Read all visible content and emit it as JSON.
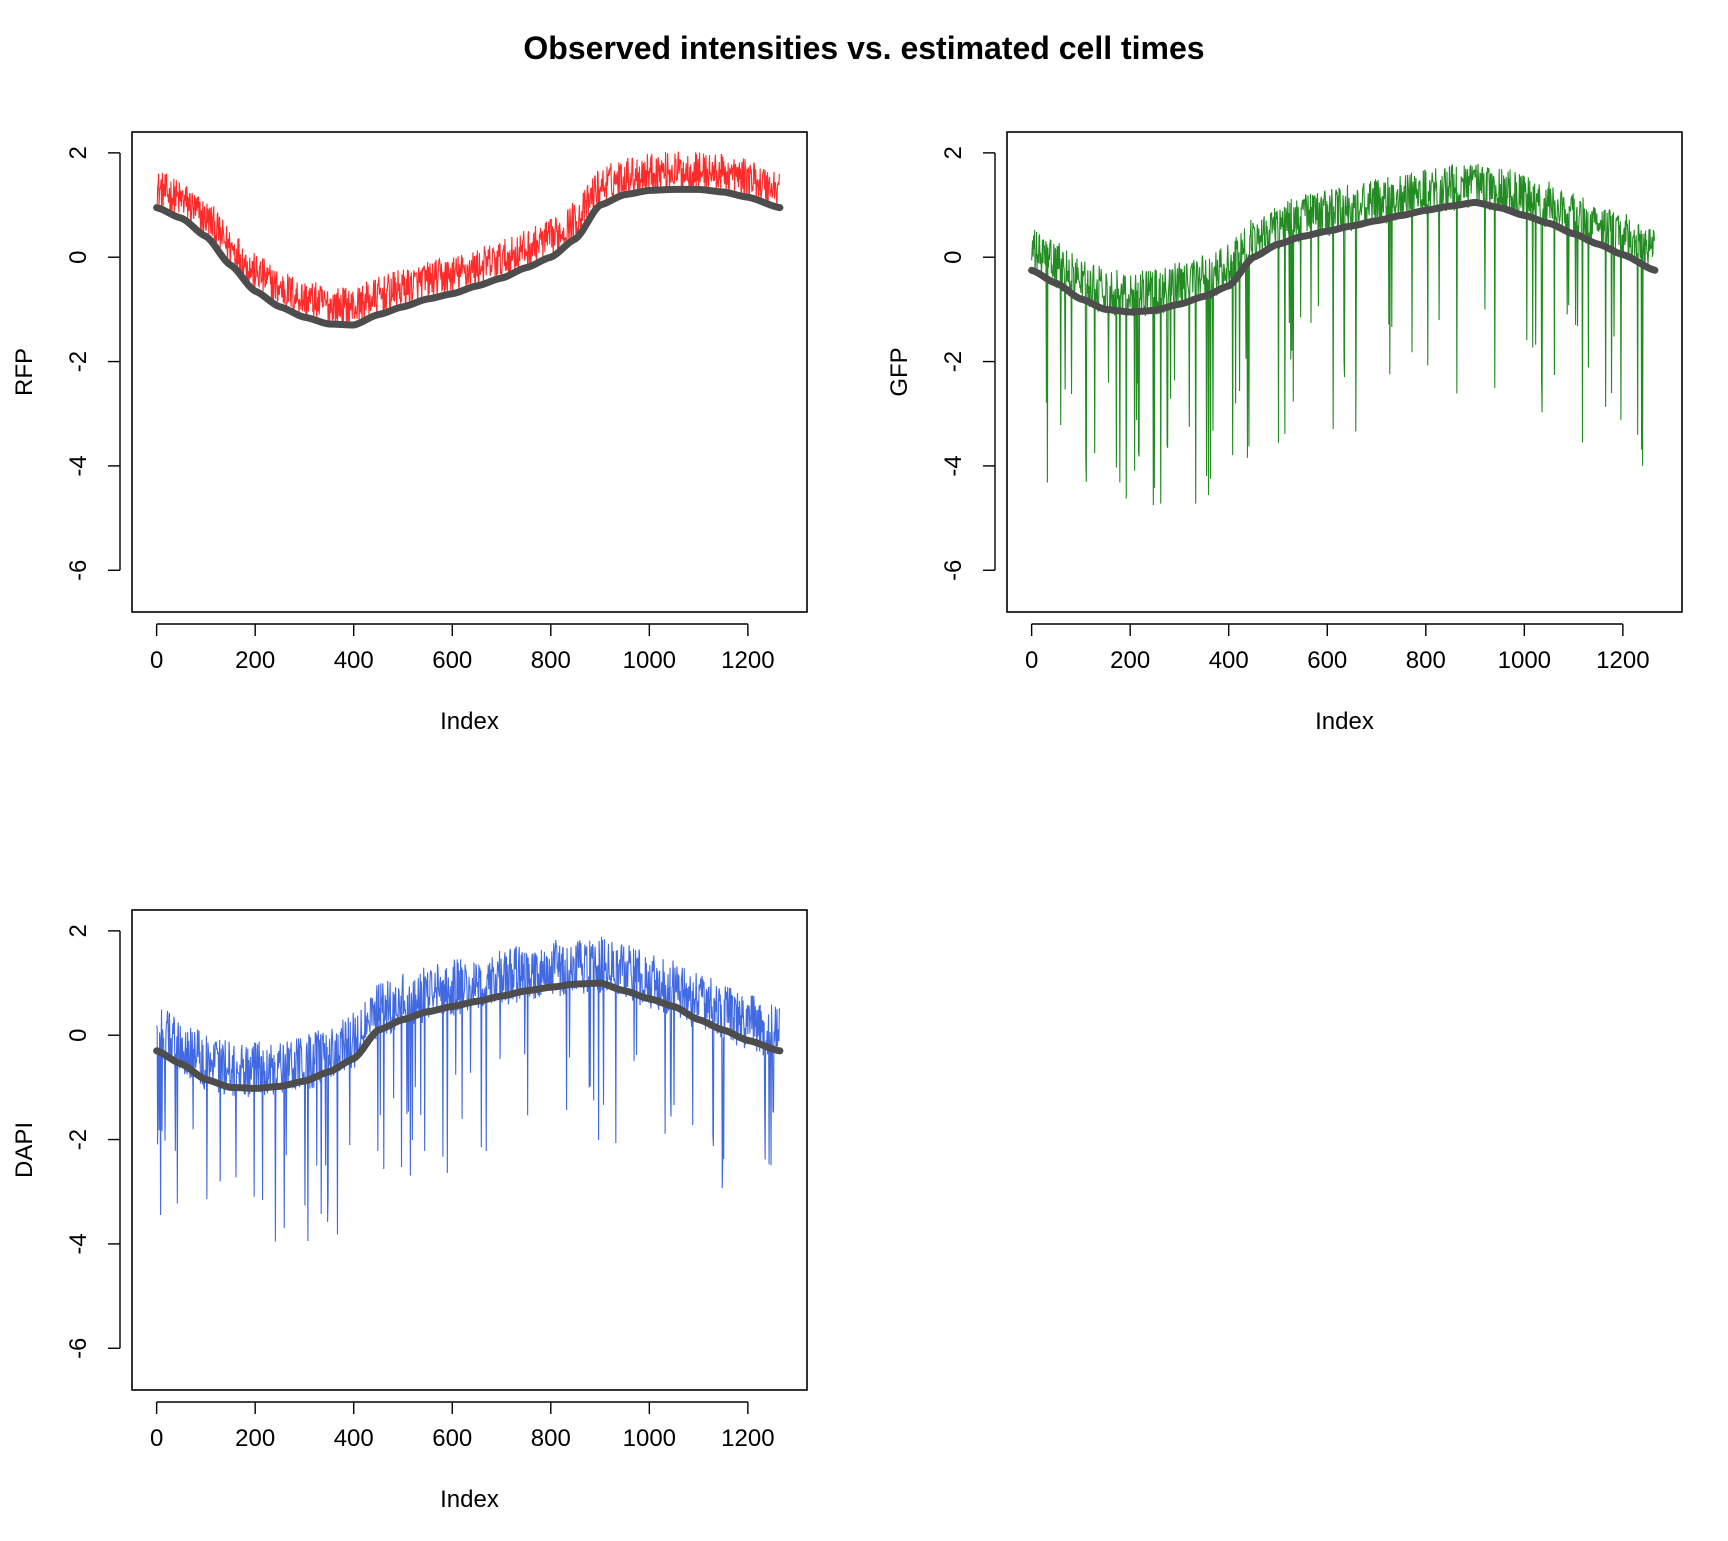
{
  "title": "Observed intensities vs. estimated cell times",
  "chart_data": [
    {
      "type": "line",
      "xlabel": "Index",
      "ylabel": "RFP",
      "xlim": [
        -50,
        1320
      ],
      "ylim": [
        -6.8,
        2.4
      ],
      "xticks": [
        0,
        200,
        400,
        600,
        800,
        1000,
        1200
      ],
      "yticks": [
        2,
        0,
        -2,
        -4,
        -6
      ],
      "n_points": 1265,
      "series": [
        {
          "role": "observed",
          "color": "#ff2a2a",
          "noise": 0.38,
          "spike_rate": 0.0,
          "spike_depth": 0
        },
        {
          "role": "fitted",
          "color": "#4d4d4d",
          "x": [
            0,
            50,
            100,
            150,
            200,
            250,
            300,
            350,
            400,
            450,
            500,
            550,
            600,
            650,
            700,
            750,
            800,
            850,
            900,
            950,
            1000,
            1050,
            1100,
            1150,
            1200,
            1265
          ],
          "y": [
            0.95,
            0.75,
            0.4,
            -0.15,
            -0.65,
            -0.95,
            -1.15,
            -1.28,
            -1.3,
            -1.1,
            -0.95,
            -0.8,
            -0.7,
            -0.55,
            -0.4,
            -0.2,
            0.0,
            0.35,
            1.0,
            1.2,
            1.28,
            1.3,
            1.3,
            1.25,
            1.15,
            0.95
          ]
        }
      ]
    },
    {
      "type": "line",
      "xlabel": "Index",
      "ylabel": "GFP",
      "xlim": [
        -50,
        1320
      ],
      "ylim": [
        -6.8,
        2.4
      ],
      "xticks": [
        0,
        200,
        400,
        600,
        800,
        1000,
        1200
      ],
      "yticks": [
        2,
        0,
        -2,
        -4,
        -6
      ],
      "n_points": 1265,
      "series": [
        {
          "role": "observed",
          "color": "#228b22",
          "noise": 0.45,
          "spike_rate": 0.07,
          "spike_depth": 2.2
        },
        {
          "role": "fitted",
          "color": "#4d4d4d",
          "x": [
            0,
            50,
            100,
            150,
            200,
            250,
            300,
            350,
            400,
            450,
            500,
            550,
            600,
            650,
            700,
            750,
            800,
            850,
            900,
            950,
            1000,
            1050,
            1100,
            1150,
            1200,
            1265
          ],
          "y": [
            -0.25,
            -0.5,
            -0.8,
            -1.0,
            -1.05,
            -1.02,
            -0.9,
            -0.75,
            -0.55,
            0.0,
            0.25,
            0.4,
            0.5,
            0.6,
            0.7,
            0.8,
            0.9,
            0.98,
            1.05,
            0.95,
            0.8,
            0.65,
            0.45,
            0.25,
            0.05,
            -0.25
          ]
        }
      ]
    },
    {
      "type": "line",
      "xlabel": "Index",
      "ylabel": "DAPI",
      "xlim": [
        -50,
        1320
      ],
      "ylim": [
        -6.8,
        2.4
      ],
      "xticks": [
        0,
        200,
        400,
        600,
        800,
        1000,
        1200
      ],
      "yticks": [
        2,
        0,
        -2,
        -4,
        -6
      ],
      "n_points": 1265,
      "series": [
        {
          "role": "observed",
          "color": "#4169e1",
          "noise": 0.55,
          "spike_rate": 0.06,
          "spike_depth": 1.8
        },
        {
          "role": "fitted",
          "color": "#4d4d4d",
          "x": [
            0,
            50,
            100,
            150,
            200,
            250,
            300,
            350,
            400,
            450,
            500,
            550,
            600,
            650,
            700,
            750,
            800,
            850,
            900,
            950,
            1000,
            1050,
            1100,
            1150,
            1200,
            1265
          ],
          "y": [
            -0.3,
            -0.55,
            -0.85,
            -1.0,
            -1.02,
            -0.98,
            -0.88,
            -0.7,
            -0.45,
            0.1,
            0.3,
            0.45,
            0.55,
            0.65,
            0.75,
            0.85,
            0.92,
            0.98,
            1.0,
            0.85,
            0.7,
            0.55,
            0.3,
            0.1,
            -0.1,
            -0.3
          ]
        }
      ]
    }
  ]
}
